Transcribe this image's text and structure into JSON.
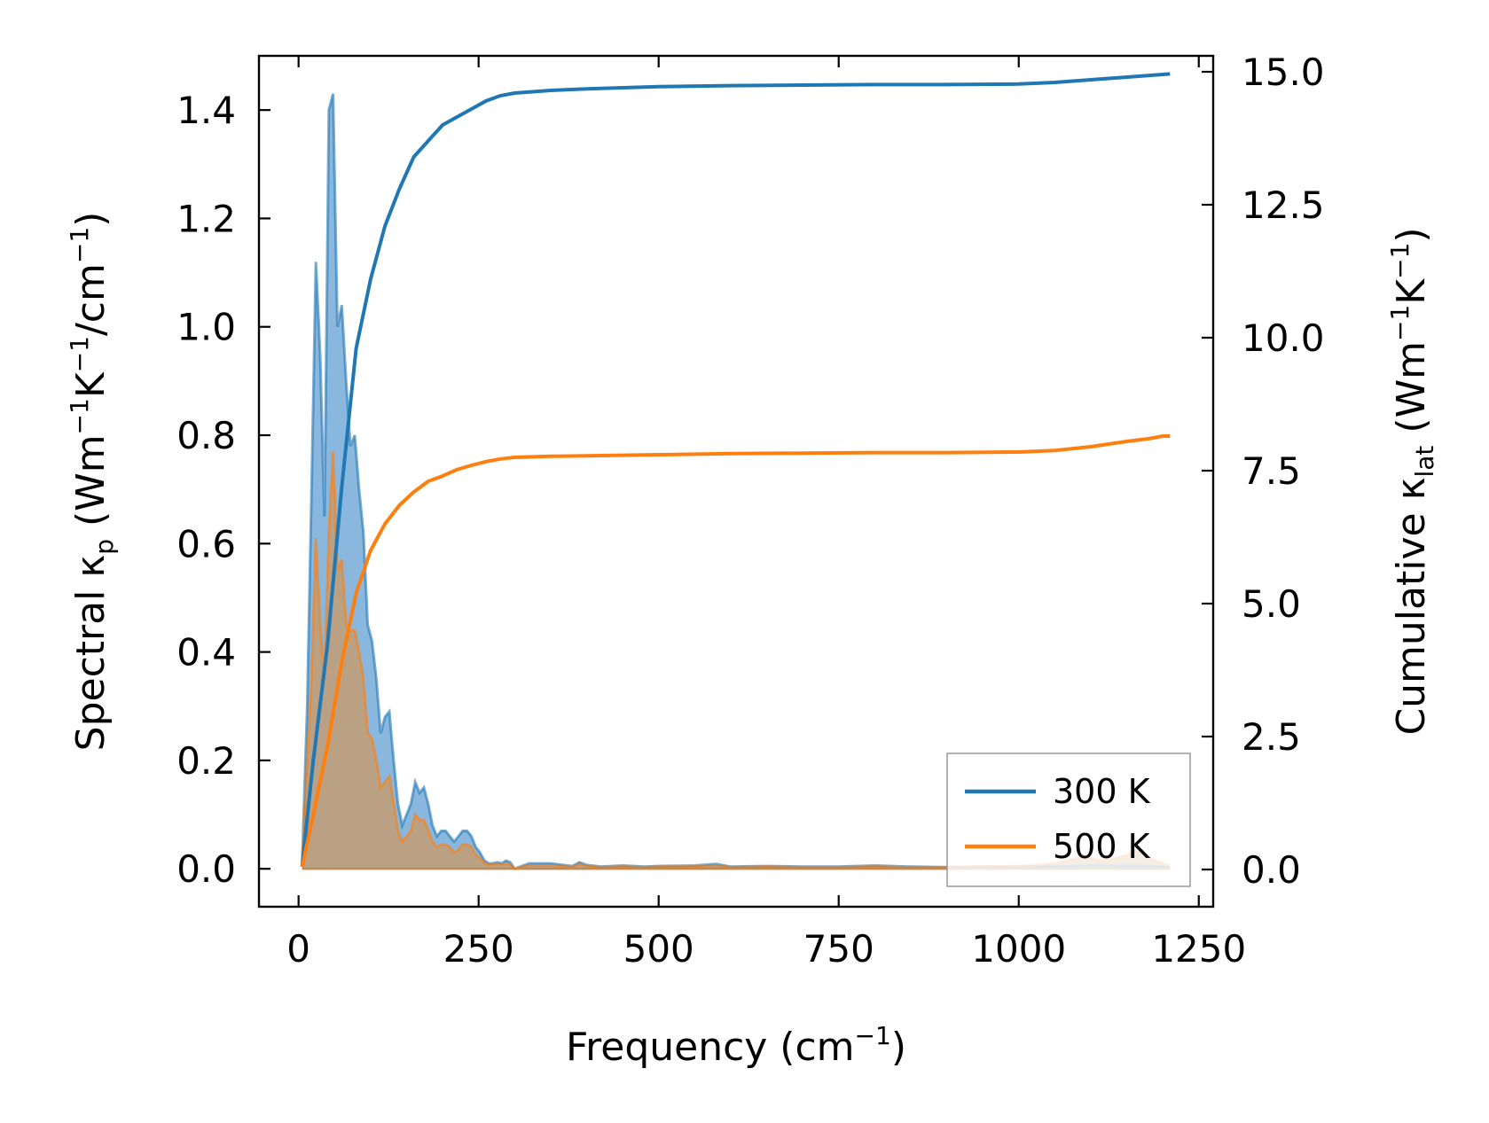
{
  "chart_data": {
    "type": "line",
    "xlabel": {
      "base": "Frequency (cm",
      "sup": "−1",
      "tail": ")"
    },
    "ylabel_left": {
      "parts": [
        {
          "t": "Spectral κ"
        },
        {
          "t": "p",
          "s": "sub"
        },
        {
          "t": " (Wm"
        },
        {
          "t": "−1",
          "s": "sup"
        },
        {
          "t": "K"
        },
        {
          "t": "−1",
          "s": "sup"
        },
        {
          "t": "/cm"
        },
        {
          "t": "−1",
          "s": "sup"
        },
        {
          "t": ")"
        }
      ]
    },
    "ylabel_right": {
      "parts": [
        {
          "t": "Cumulative κ"
        },
        {
          "t": "lat",
          "s": "sub"
        },
        {
          "t": " (Wm"
        },
        {
          "t": "−1",
          "s": "sup"
        },
        {
          "t": "K"
        },
        {
          "t": "−1",
          "s": "sup"
        },
        {
          "t": ")"
        }
      ]
    },
    "xlim": [
      -55,
      1270
    ],
    "ylim_left": [
      -0.07,
      1.5
    ],
    "ylim_right": [
      -0.7,
      15.3
    ],
    "x_ticks": [
      0,
      250,
      500,
      750,
      1000,
      1250
    ],
    "x_tick_labels": [
      "0",
      "250",
      "500",
      "750",
      "1000",
      "1250"
    ],
    "y_left_ticks": [
      0.0,
      0.2,
      0.4,
      0.6,
      0.8,
      1.0,
      1.2,
      1.4
    ],
    "y_left_tick_labels": [
      "0.0",
      "0.2",
      "0.4",
      "0.6",
      "0.8",
      "1.0",
      "1.2",
      "1.4"
    ],
    "y_right_ticks": [
      0.0,
      2.5,
      5.0,
      7.5,
      10.0,
      12.5,
      15.0
    ],
    "y_right_tick_labels": [
      "0.0",
      "2.5",
      "5.0",
      "7.5",
      "10.0",
      "12.5",
      "15.0"
    ],
    "grid": false,
    "legend": {
      "placement": "bottom-right",
      "entries": [
        "300 K",
        "500 K"
      ]
    },
    "series": [
      {
        "name": "300 K",
        "color": "#1f77b4",
        "fill_color": "#5b9bd0",
        "spectral": {
          "x": [
            5,
            12,
            18,
            24,
            30,
            36,
            42,
            48,
            54,
            60,
            66,
            72,
            78,
            84,
            90,
            96,
            102,
            108,
            114,
            120,
            126,
            132,
            138,
            144,
            150,
            156,
            162,
            168,
            174,
            180,
            186,
            192,
            198,
            204,
            210,
            216,
            222,
            228,
            234,
            240,
            246,
            252,
            258,
            264,
            270,
            276,
            282,
            288,
            294,
            300,
            320,
            350,
            380,
            390,
            400,
            420,
            450,
            480,
            500,
            550,
            580,
            600,
            650,
            700,
            750,
            800,
            850,
            900,
            950,
            1000,
            1050,
            1080,
            1100,
            1150,
            1180,
            1210
          ],
          "y": [
            0.01,
            0.3,
            0.7,
            1.12,
            0.95,
            0.65,
            1.4,
            1.43,
            1.0,
            1.04,
            0.9,
            0.78,
            0.8,
            0.7,
            0.62,
            0.45,
            0.42,
            0.35,
            0.25,
            0.28,
            0.29,
            0.2,
            0.12,
            0.08,
            0.1,
            0.12,
            0.16,
            0.14,
            0.15,
            0.12,
            0.08,
            0.06,
            0.07,
            0.07,
            0.06,
            0.05,
            0.06,
            0.07,
            0.07,
            0.06,
            0.04,
            0.03,
            0.015,
            0.01,
            0.01,
            0.012,
            0.01,
            0.015,
            0.012,
            0.0,
            0.01,
            0.01,
            0.005,
            0.012,
            0.007,
            0.004,
            0.006,
            0.004,
            0.005,
            0.006,
            0.009,
            0.004,
            0.005,
            0.004,
            0.004,
            0.006,
            0.004,
            0.003,
            0.004,
            0.004,
            0.004,
            0.005,
            0.006,
            0.005,
            0.005,
            0.003
          ]
        },
        "cumulative": {
          "x": [
            5,
            20,
            40,
            60,
            80,
            100,
            120,
            140,
            160,
            180,
            200,
            220,
            240,
            260,
            280,
            300,
            350,
            400,
            500,
            600,
            700,
            800,
            900,
            1000,
            1050,
            1100,
            1150,
            1200,
            1210
          ],
          "y": [
            0.05,
            2.0,
            4.2,
            7.2,
            9.8,
            11.1,
            12.1,
            12.8,
            13.4,
            13.7,
            14.0,
            14.15,
            14.3,
            14.45,
            14.55,
            14.6,
            14.65,
            14.68,
            14.72,
            14.74,
            14.75,
            14.76,
            14.76,
            14.77,
            14.8,
            14.85,
            14.9,
            14.95,
            14.96
          ]
        }
      },
      {
        "name": "500 K",
        "color": "#ff7f0e",
        "fill_color": "#c29e78",
        "spectral": {
          "x": [
            5,
            12,
            18,
            24,
            30,
            36,
            42,
            48,
            54,
            60,
            66,
            72,
            78,
            84,
            90,
            96,
            102,
            108,
            114,
            120,
            126,
            132,
            138,
            144,
            150,
            156,
            162,
            168,
            174,
            180,
            186,
            192,
            198,
            204,
            210,
            216,
            222,
            228,
            234,
            240,
            246,
            252,
            258,
            264,
            270,
            276,
            282,
            288,
            294,
            300,
            320,
            350,
            380,
            390,
            400,
            420,
            450,
            480,
            500,
            550,
            580,
            600,
            650,
            700,
            750,
            800,
            850,
            900,
            950,
            1000,
            1050,
            1080,
            1100,
            1120,
            1150,
            1160,
            1180,
            1210
          ],
          "y": [
            0.01,
            0.2,
            0.35,
            0.61,
            0.45,
            0.35,
            0.62,
            0.77,
            0.55,
            0.57,
            0.45,
            0.44,
            0.44,
            0.4,
            0.35,
            0.25,
            0.24,
            0.2,
            0.15,
            0.16,
            0.17,
            0.12,
            0.07,
            0.05,
            0.06,
            0.07,
            0.1,
            0.09,
            0.09,
            0.07,
            0.05,
            0.04,
            0.045,
            0.045,
            0.04,
            0.03,
            0.035,
            0.045,
            0.045,
            0.04,
            0.025,
            0.02,
            0.01,
            0.008,
            0.008,
            0.009,
            0.008,
            0.01,
            0.008,
            0.0,
            0.006,
            0.006,
            0.003,
            0.008,
            0.005,
            0.003,
            0.004,
            0.003,
            0.004,
            0.004,
            0.006,
            0.003,
            0.004,
            0.003,
            0.003,
            0.004,
            0.003,
            0.003,
            0.004,
            0.005,
            0.01,
            0.02,
            0.02,
            0.015,
            0.025,
            0.035,
            0.02,
            0.005
          ]
        },
        "cumulative": {
          "x": [
            5,
            20,
            40,
            60,
            80,
            100,
            120,
            140,
            160,
            180,
            200,
            220,
            240,
            260,
            280,
            300,
            350,
            400,
            500,
            600,
            700,
            800,
            900,
            1000,
            1050,
            1100,
            1150,
            1180,
            1200,
            1210
          ],
          "y": [
            0.05,
            1.0,
            2.3,
            3.9,
            5.2,
            6.0,
            6.5,
            6.85,
            7.1,
            7.3,
            7.4,
            7.52,
            7.6,
            7.67,
            7.72,
            7.75,
            7.77,
            7.78,
            7.8,
            7.82,
            7.83,
            7.84,
            7.84,
            7.85,
            7.88,
            7.95,
            8.05,
            8.1,
            8.15,
            8.15
          ]
        }
      }
    ]
  }
}
